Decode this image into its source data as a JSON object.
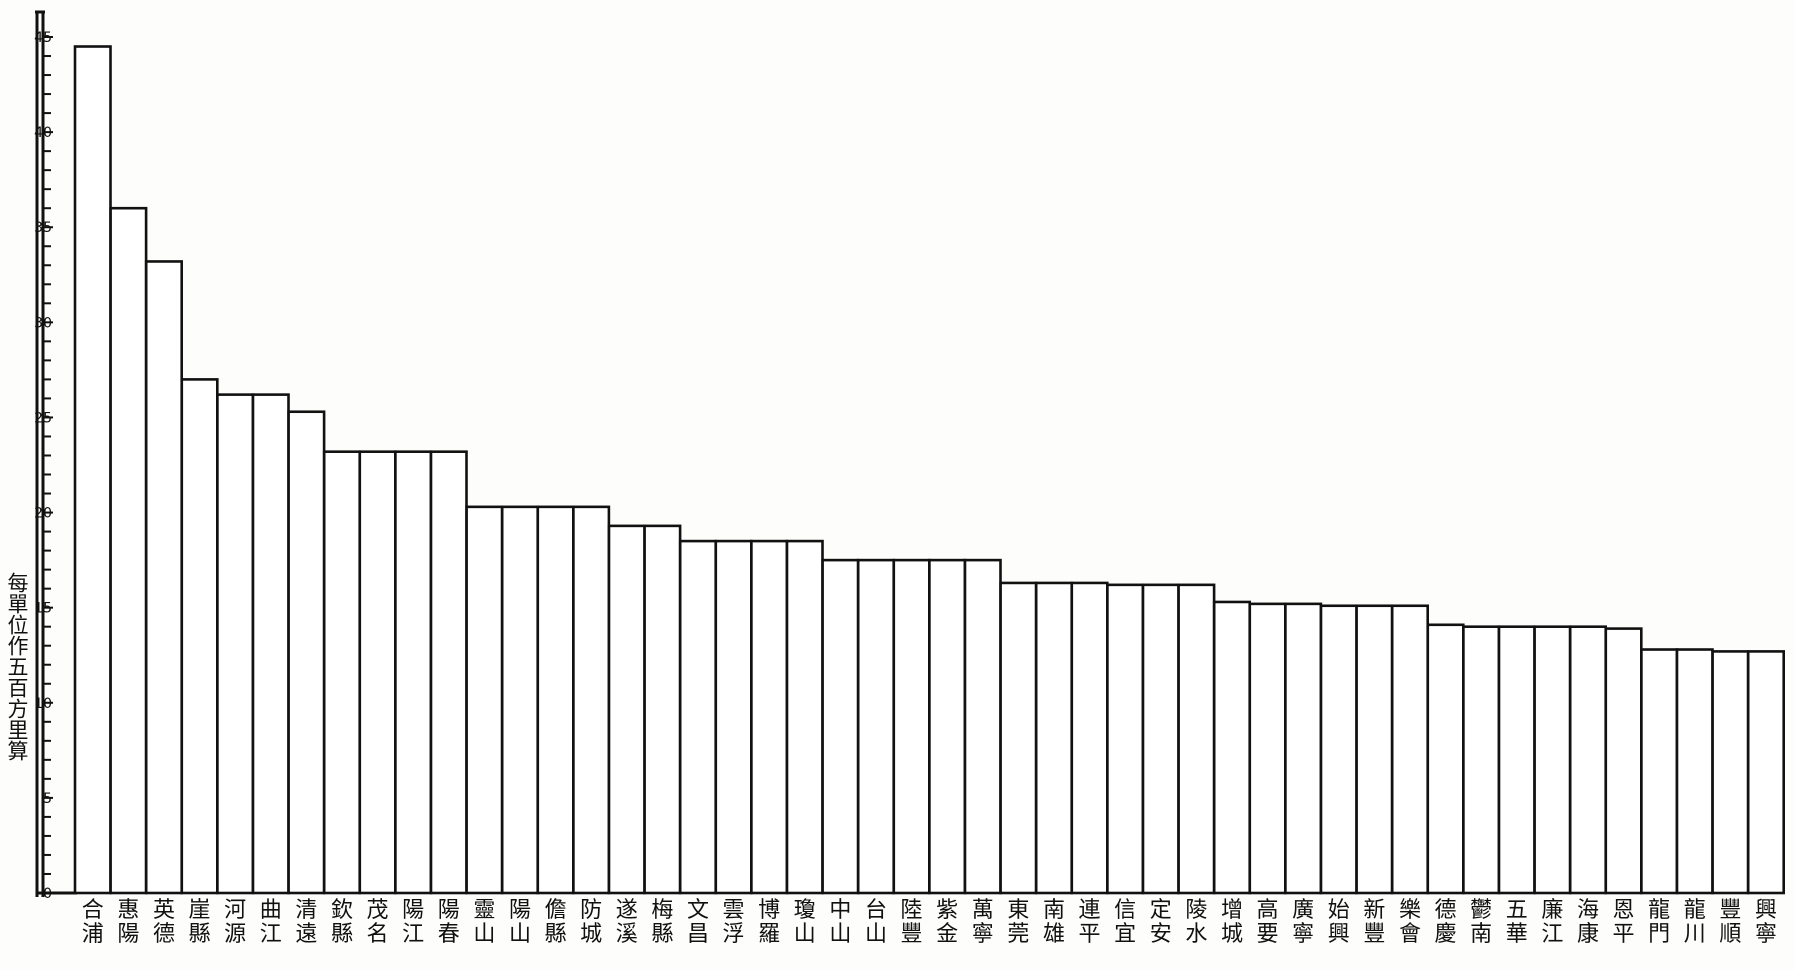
{
  "chart_data": {
    "type": "bar",
    "ylabel": "每單位作五百方里算",
    "ylim": [
      0,
      45
    ],
    "yticks": [
      0,
      5,
      10,
      15,
      20,
      25,
      30,
      35,
      40,
      45
    ],
    "categories": [
      "合浦",
      "惠陽",
      "英德",
      "崖縣",
      "河源",
      "曲江",
      "清遠",
      "欽縣",
      "茂名",
      "陽江",
      "陽春",
      "靈山",
      "陽山",
      "儋縣",
      "防城",
      "遂溪",
      "梅縣",
      "文昌",
      "雲浮",
      "博羅",
      "瓊山",
      "中山",
      "台山",
      "陸豐",
      "紫金",
      "萬寧",
      "東莞",
      "南雄",
      "連平",
      "信宜",
      "定安",
      "陵水",
      "增城",
      "高要",
      "廣寧",
      "始興",
      "新豐",
      "樂會",
      "德慶",
      "鬱南",
      "五華",
      "廉江",
      "海康",
      "恩平",
      "龍門",
      "龍川",
      "豐順",
      "興寧"
    ],
    "values": [
      44.5,
      36.0,
      33.2,
      27.0,
      26.2,
      26.2,
      25.3,
      23.2,
      23.2,
      23.2,
      23.2,
      20.3,
      20.3,
      20.3,
      20.3,
      19.3,
      19.3,
      18.5,
      18.5,
      18.5,
      18.5,
      17.5,
      17.5,
      17.5,
      17.5,
      17.5,
      16.3,
      16.3,
      16.3,
      16.2,
      16.2,
      16.2,
      15.3,
      15.2,
      15.2,
      15.1,
      15.1,
      15.1,
      14.1,
      14.0,
      14.0,
      14.0,
      14.0,
      13.9,
      12.8,
      12.8,
      12.7,
      12.7
    ]
  }
}
